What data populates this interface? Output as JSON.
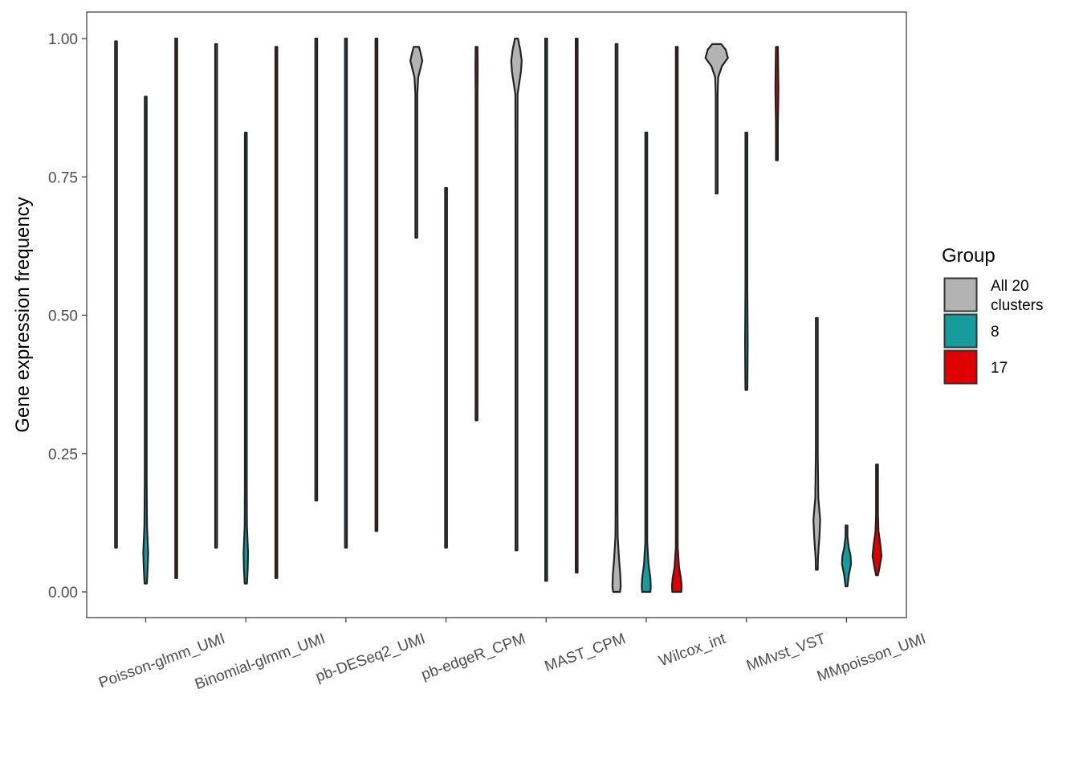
{
  "chart_data": {
    "type": "violin",
    "xlabel": "",
    "ylabel": "Gene expression frequency",
    "ylim": [
      -0.05,
      1.05
    ],
    "yticks": [
      0.0,
      0.25,
      0.5,
      0.75,
      1.0
    ],
    "ytick_labels": [
      "0.00",
      "0.25",
      "0.50",
      "0.75",
      "1.00"
    ],
    "grid": false,
    "categories": [
      "Poisson-glmm_UMI",
      "Binomial-glmm_UMI",
      "pb-DESeq2_UMI",
      "pb-edgeR_CPM",
      "MAST_CPM",
      "Wilcox_int",
      "MMvst_VST",
      "MMpoisson_UMI"
    ],
    "legend": {
      "title": "Group",
      "position": "right",
      "entries": [
        {
          "label": [
            "All 20",
            "clusters"
          ],
          "color": "#b3b3b3"
        },
        {
          "label": [
            "8"
          ],
          "color": "#169c9c"
        },
        {
          "label": [
            "17"
          ],
          "color": "#e00000"
        }
      ]
    },
    "series": [
      {
        "name": "All 20 clusters",
        "color": "#b3b3b3",
        "violins": [
          {
            "category": "Poisson-glmm_UMI",
            "min": 0.08,
            "max": 0.995,
            "profile": [
              [
                0.08,
                0.2
              ],
              [
                0.3,
                0.4
              ],
              [
                0.6,
                0.5
              ],
              [
                0.9,
                0.6
              ],
              [
                0.995,
                0.2
              ]
            ]
          },
          {
            "category": "Binomial-glmm_UMI",
            "min": 0.08,
            "max": 0.99,
            "profile": [
              [
                0.08,
                0.2
              ],
              [
                0.3,
                0.4
              ],
              [
                0.6,
                0.5
              ],
              [
                0.9,
                0.6
              ],
              [
                0.99,
                0.2
              ]
            ]
          },
          {
            "category": "pb-DESeq2_UMI",
            "min": 0.165,
            "max": 1.0,
            "profile": [
              [
                0.165,
                0.2
              ],
              [
                0.5,
                0.4
              ],
              [
                0.8,
                0.8
              ],
              [
                0.95,
                2.0
              ],
              [
                1.0,
                2.5
              ]
            ]
          },
          {
            "category": "pb-edgeR_CPM",
            "min": 0.64,
            "max": 0.985,
            "profile": [
              [
                0.64,
                0.3
              ],
              [
                0.75,
                0.5
              ],
              [
                0.85,
                1.0
              ],
              [
                0.9,
                2.0
              ],
              [
                0.93,
                5.0
              ],
              [
                0.96,
                16.0
              ],
              [
                0.975,
                11.0
              ],
              [
                0.985,
                7.0
              ]
            ]
          },
          {
            "category": "MAST_CPM",
            "min": 0.075,
            "max": 1.0,
            "profile": [
              [
                0.075,
                0.3
              ],
              [
                0.5,
                0.5
              ],
              [
                0.8,
                1.5
              ],
              [
                0.9,
                3.0
              ],
              [
                0.94,
                12.0
              ],
              [
                0.96,
                14.0
              ],
              [
                0.98,
                10.0
              ],
              [
                1.0,
                4.0
              ]
            ]
          },
          {
            "category": "Wilcox_int",
            "min": 0.0,
            "max": 0.99,
            "profile": [
              [
                0.0,
                9.0
              ],
              [
                0.01,
                11.0
              ],
              [
                0.03,
                10.0
              ],
              [
                0.06,
                6.5
              ],
              [
                0.1,
                3.0
              ],
              [
                0.15,
                1.5
              ],
              [
                0.3,
                0.8
              ],
              [
                0.6,
                0.5
              ],
              [
                0.99,
                0.3
              ]
            ]
          },
          {
            "category": "MMvst_VST",
            "min": 0.72,
            "max": 0.99,
            "profile": [
              [
                0.72,
                0.5
              ],
              [
                0.8,
                0.8
              ],
              [
                0.9,
                1.5
              ],
              [
                0.93,
                4.0
              ],
              [
                0.95,
                14.0
              ],
              [
                0.965,
                30.0
              ],
              [
                0.98,
                24.0
              ],
              [
                0.99,
                12.0
              ]
            ]
          },
          {
            "category": "MMpoisson_UMI",
            "min": 0.04,
            "max": 0.495,
            "profile": [
              [
                0.04,
                1.5
              ],
              [
                0.06,
                3.0
              ],
              [
                0.1,
                7.0
              ],
              [
                0.13,
                9.0
              ],
              [
                0.17,
                4.0
              ],
              [
                0.25,
                1.5
              ],
              [
                0.35,
                0.7
              ],
              [
                0.495,
                0.4
              ]
            ]
          }
        ]
      },
      {
        "name": "8",
        "color": "#169c9c",
        "violins": [
          {
            "category": "Poisson-glmm_UMI",
            "min": 0.015,
            "max": 0.895,
            "profile": [
              [
                0.015,
                3.0
              ],
              [
                0.04,
                5.0
              ],
              [
                0.07,
                6.5
              ],
              [
                0.12,
                3.5
              ],
              [
                0.2,
                1.0
              ],
              [
                0.4,
                0.5
              ],
              [
                0.895,
                0.3
              ]
            ]
          },
          {
            "category": "Binomial-glmm_UMI",
            "min": 0.015,
            "max": 0.83,
            "profile": [
              [
                0.015,
                3.0
              ],
              [
                0.04,
                5.0
              ],
              [
                0.07,
                6.0
              ],
              [
                0.12,
                3.0
              ],
              [
                0.2,
                1.0
              ],
              [
                0.4,
                0.5
              ],
              [
                0.83,
                0.3
              ]
            ]
          },
          {
            "category": "pb-DESeq2_UMI",
            "min": 0.08,
            "max": 1.0,
            "profile": [
              [
                0.08,
                0.3
              ],
              [
                0.4,
                0.6
              ],
              [
                0.7,
                0.5
              ],
              [
                1.0,
                0.3
              ]
            ]
          },
          {
            "category": "pb-edgeR_CPM",
            "min": 0.08,
            "max": 0.73,
            "profile": [
              [
                0.08,
                0.3
              ],
              [
                0.3,
                1.0
              ],
              [
                0.4,
                2.5
              ],
              [
                0.5,
                1.5
              ],
              [
                0.73,
                0.4
              ]
            ]
          },
          {
            "category": "MAST_CPM",
            "min": 0.02,
            "max": 1.0,
            "profile": [
              [
                0.02,
                0.3
              ],
              [
                0.3,
                0.8
              ],
              [
                0.45,
                1.2
              ],
              [
                0.7,
                0.6
              ],
              [
                1.0,
                0.3
              ]
            ]
          },
          {
            "category": "Wilcox_int",
            "min": 0.0,
            "max": 0.83,
            "profile": [
              [
                0.0,
                11.0
              ],
              [
                0.01,
                12.0
              ],
              [
                0.025,
                11.0
              ],
              [
                0.05,
                6.0
              ],
              [
                0.09,
                2.0
              ],
              [
                0.15,
                0.8
              ],
              [
                0.3,
                0.5
              ],
              [
                0.83,
                0.3
              ]
            ]
          },
          {
            "category": "MMvst_VST",
            "min": 0.365,
            "max": 0.83,
            "profile": [
              [
                0.365,
                2.5
              ],
              [
                0.4,
                3.0
              ],
              [
                0.45,
                3.5
              ],
              [
                0.5,
                3.0
              ],
              [
                0.55,
                2.0
              ],
              [
                0.65,
                1.0
              ],
              [
                0.75,
                0.6
              ],
              [
                0.83,
                0.3
              ]
            ]
          },
          {
            "category": "MMpoisson_UMI",
            "min": 0.01,
            "max": 0.12,
            "profile": [
              [
                0.01,
                1.0
              ],
              [
                0.03,
                6.0
              ],
              [
                0.05,
                12.0
              ],
              [
                0.065,
                11.0
              ],
              [
                0.08,
                6.0
              ],
              [
                0.1,
                2.0
              ],
              [
                0.12,
                1.0
              ]
            ]
          }
        ]
      },
      {
        "name": "17",
        "color": "#e00000",
        "violins": [
          {
            "category": "Poisson-glmm_UMI",
            "min": 0.025,
            "max": 1.0,
            "profile": [
              [
                0.025,
                0.4
              ],
              [
                0.3,
                0.6
              ],
              [
                0.7,
                0.8
              ],
              [
                0.95,
                0.6
              ],
              [
                1.0,
                0.3
              ]
            ]
          },
          {
            "category": "Binomial-glmm_UMI",
            "min": 0.025,
            "max": 0.985,
            "profile": [
              [
                0.025,
                0.4
              ],
              [
                0.3,
                0.6
              ],
              [
                0.7,
                0.7
              ],
              [
                0.95,
                0.6
              ],
              [
                0.985,
                0.3
              ]
            ]
          },
          {
            "category": "pb-DESeq2_UMI",
            "min": 0.11,
            "max": 1.0,
            "profile": [
              [
                0.11,
                0.3
              ],
              [
                0.5,
                0.5
              ],
              [
                0.8,
                0.8
              ],
              [
                1.0,
                0.4
              ]
            ]
          },
          {
            "category": "pb-edgeR_CPM",
            "min": 0.31,
            "max": 0.985,
            "profile": [
              [
                0.31,
                0.3
              ],
              [
                0.6,
                0.5
              ],
              [
                0.8,
                1.0
              ],
              [
                0.9,
                2.5
              ],
              [
                0.95,
                3.0
              ],
              [
                0.985,
                1.5
              ]
            ]
          },
          {
            "category": "MAST_CPM",
            "min": 0.035,
            "max": 1.0,
            "profile": [
              [
                0.035,
                0.3
              ],
              [
                0.5,
                0.4
              ],
              [
                0.8,
                0.8
              ],
              [
                0.9,
                1.5
              ],
              [
                0.97,
                1.0
              ],
              [
                1.0,
                0.5
              ]
            ]
          },
          {
            "category": "Wilcox_int",
            "min": 0.0,
            "max": 0.985,
            "profile": [
              [
                0.0,
                12.0
              ],
              [
                0.01,
                13.0
              ],
              [
                0.025,
                11.0
              ],
              [
                0.045,
                6.0
              ],
              [
                0.08,
                2.0
              ],
              [
                0.15,
                0.8
              ],
              [
                0.4,
                0.5
              ],
              [
                0.985,
                0.3
              ]
            ]
          },
          {
            "category": "MMvst_VST",
            "min": 0.78,
            "max": 0.985,
            "profile": [
              [
                0.78,
                0.5
              ],
              [
                0.82,
                1.0
              ],
              [
                0.85,
                2.0
              ],
              [
                0.88,
                3.5
              ],
              [
                0.91,
                4.0
              ],
              [
                0.94,
                3.5
              ],
              [
                0.97,
                3.0
              ],
              [
                0.985,
                2.5
              ]
            ]
          },
          {
            "category": "MMpoisson_UMI",
            "min": 0.03,
            "max": 0.23,
            "profile": [
              [
                0.03,
                2.0
              ],
              [
                0.045,
                7.0
              ],
              [
                0.065,
                12.0
              ],
              [
                0.085,
                9.0
              ],
              [
                0.11,
                4.0
              ],
              [
                0.14,
                2.0
              ],
              [
                0.18,
                1.0
              ],
              [
                0.23,
                0.5
              ]
            ]
          }
        ]
      }
    ]
  }
}
